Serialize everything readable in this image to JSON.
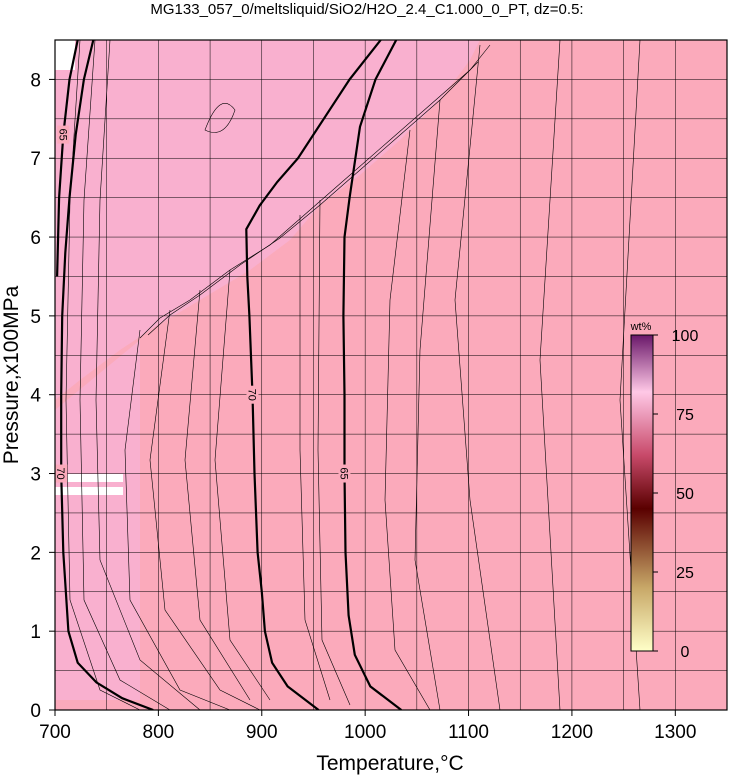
{
  "chart_data": {
    "type": "contour",
    "title": "MG133_057_0/meltsliquid/SiO2/H2O_2.4_C1.000_0_PT, dz=0.5:",
    "x_label": "Temperature,°C",
    "y_label": "Pressure,x100MPa",
    "xlim": [
      700,
      1350
    ],
    "ylim": [
      0,
      8.5
    ],
    "xticks": [
      700,
      800,
      900,
      1000,
      1100,
      1200,
      1300
    ],
    "yticks": [
      0,
      1,
      2,
      3,
      4,
      5,
      6,
      7,
      8
    ],
    "xgrid": [
      750,
      850,
      950,
      1050,
      1150,
      1250
    ],
    "ygrid": [
      0.5,
      1.5,
      2.5,
      3.5,
      4.5,
      5.5,
      6.5,
      7.5
    ],
    "grid": true,
    "contours": [
      {
        "level": 70,
        "x": [
          1015,
          985,
          960,
          935,
          915,
          898,
          885,
          886,
          888,
          891,
          893,
          896,
          900,
          903,
          910,
          925,
          955
        ],
        "y": [
          8.5,
          8.0,
          7.5,
          7.0,
          6.7,
          6.4,
          6.1,
          5.5,
          5.0,
          4.0,
          3.0,
          2.0,
          1.5,
          1.0,
          0.6,
          0.3,
          0
        ]
      },
      {
        "level": 65,
        "x": [
          1030,
          1010,
          995,
          985,
          980,
          979,
          980,
          980,
          981,
          984,
          990,
          1005,
          1035
        ],
        "y": [
          8.5,
          8.0,
          7.4,
          6.5,
          6.0,
          5.0,
          4.0,
          3.0,
          2.0,
          1.2,
          0.7,
          0.3,
          0
        ]
      },
      {
        "level": 70,
        "x": [
          737,
          728,
          720,
          714,
          710,
          707,
          706,
          706,
          708,
          713,
          722,
          740,
          765,
          795
        ],
        "y": [
          8.5,
          8.0,
          7.3,
          6.5,
          5.8,
          5.0,
          4.0,
          3.0,
          2.0,
          1.0,
          0.6,
          0.35,
          0.15,
          0
        ]
      },
      {
        "level": 65,
        "x": [
          722,
          714,
          708,
          704,
          702
        ],
        "y": [
          8.5,
          8.0,
          7.3,
          6.5,
          5.5
        ]
      }
    ],
    "colorbar": {
      "label": "wt%",
      "lim": [
        0,
        100
      ],
      "ticks": [
        0,
        25,
        50,
        75,
        100
      ]
    }
  }
}
